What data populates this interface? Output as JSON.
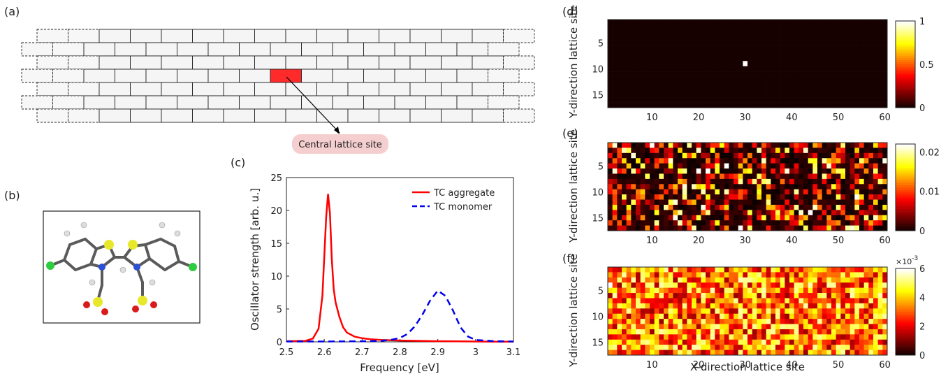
{
  "panels": {
    "a": "(a)",
    "b": "(b)",
    "c": "(c)",
    "d": "(d)",
    "e": "(e)",
    "f": "(f)"
  },
  "lattice": {
    "annotation": "Central lattice site"
  },
  "chart_data": [
    {
      "type": "line",
      "panel": "c",
      "xlabel": "Frequency [eV]",
      "ylabel": "Oscillator strength [arb. u.]",
      "xlim": [
        2.5,
        3.1
      ],
      "ylim": [
        0,
        25
      ],
      "xticks": [
        2.5,
        2.6,
        2.7,
        2.8,
        2.9,
        3.0,
        3.1
      ],
      "xtick_labels": [
        "2.5",
        "2.6",
        "2.7",
        "2.8",
        "2.9",
        "3",
        "3.1"
      ],
      "yticks": [
        0,
        5,
        10,
        15,
        20,
        25
      ],
      "legend_position": "top-right",
      "series": [
        {
          "name": "TC aggregate",
          "color": "#ff0000",
          "dash": "solid",
          "x": [
            2.5,
            2.55,
            2.57,
            2.585,
            2.595,
            2.6,
            2.605,
            2.61,
            2.615,
            2.62,
            2.625,
            2.63,
            2.64,
            2.65,
            2.66,
            2.68,
            2.7,
            2.72,
            2.75,
            2.8,
            2.85,
            2.9,
            2.95,
            3.0,
            3.05,
            3.1
          ],
          "y": [
            0.1,
            0.15,
            0.5,
            2.0,
            7.0,
            13.0,
            19.0,
            22.5,
            19.5,
            12.5,
            8.0,
            6.0,
            3.8,
            2.2,
            1.4,
            0.8,
            0.55,
            0.4,
            0.3,
            0.2,
            0.15,
            0.1,
            0.08,
            0.05,
            0.03,
            0.02
          ]
        },
        {
          "name": "TC monomer",
          "color": "#0000ee",
          "dash": "dashed",
          "x": [
            2.5,
            2.6,
            2.7,
            2.75,
            2.78,
            2.8,
            2.82,
            2.84,
            2.86,
            2.88,
            2.9,
            2.92,
            2.94,
            2.96,
            2.98,
            3.0,
            3.05,
            3.1
          ],
          "y": [
            0.05,
            0.05,
            0.08,
            0.15,
            0.35,
            0.6,
            1.2,
            2.4,
            4.2,
            6.3,
            7.8,
            7.0,
            4.8,
            2.2,
            0.8,
            0.3,
            0.1,
            0.05
          ]
        }
      ]
    },
    {
      "type": "heatmap",
      "panel": "d",
      "xlabel": "",
      "ylabel": "Y-direction lattice site",
      "xticks": [
        10,
        20,
        30,
        40,
        50,
        60
      ],
      "yticks": [
        5,
        10,
        15
      ],
      "grid_size": [
        60,
        17
      ],
      "colorbar_ticks": [
        "0",
        "0.5",
        "1"
      ],
      "colorbar_range": [
        0,
        1
      ],
      "highlight_site": [
        30,
        9
      ],
      "description": "single bright site at centre, all others zero"
    },
    {
      "type": "heatmap",
      "panel": "e",
      "xlabel": "",
      "ylabel": "Y-direction lattice site",
      "xticks": [
        10,
        20,
        30,
        40,
        50,
        60
      ],
      "yticks": [
        5,
        10,
        15
      ],
      "grid_size": [
        60,
        17
      ],
      "colorbar_ticks": [
        "0",
        "0.01",
        "0.02"
      ],
      "colorbar_range": [
        0,
        0.022
      ]
    },
    {
      "type": "heatmap",
      "panel": "f",
      "xlabel": "X-direction lattice site",
      "ylabel": "Y-direction lattice site",
      "xticks": [
        10,
        20,
        30,
        40,
        50,
        60
      ],
      "yticks": [
        5,
        10,
        15
      ],
      "grid_size": [
        60,
        17
      ],
      "colorbar_ticks": [
        "0",
        "2",
        "4",
        "6"
      ],
      "colorbar_range": [
        0,
        6
      ],
      "colorbar_exponent_base": "×10",
      "colorbar_exponent": "-3"
    }
  ]
}
